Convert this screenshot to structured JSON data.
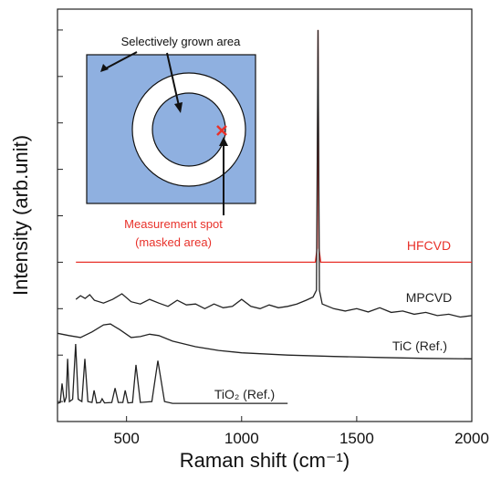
{
  "chart_data": {
    "type": "line",
    "x_label": "Raman shift (cm⁻¹)",
    "y_label": "Intensity (arb.unit)",
    "xlim": [
      200,
      2000
    ],
    "xticks": [
      500,
      1000,
      1500,
      2000
    ],
    "ylim": [
      0.57,
      9.45
    ],
    "yticks": [
      1,
      2,
      3,
      4,
      5,
      6,
      7,
      8,
      9
    ],
    "annotations": [
      "Selectively grown area",
      "Measurement spot",
      "(masked area)"
    ],
    "series": [
      {
        "name": "HFCVD",
        "color": "#e8312a",
        "x": [
          280,
          1320,
          1328,
          1332,
          1336,
          1344,
          2000
        ],
        "values": [
          4.0,
          4.0,
          4.3,
          9.0,
          4.3,
          4.0,
          4.0
        ]
      },
      {
        "name": "MPCVD",
        "color": "#222222",
        "x": [
          280,
          300,
          320,
          340,
          360,
          400,
          440,
          480,
          520,
          560,
          600,
          640,
          680,
          720,
          760,
          800,
          840,
          880,
          920,
          960,
          1000,
          1040,
          1080,
          1120,
          1160,
          1200,
          1240,
          1280,
          1310,
          1325,
          1332,
          1338,
          1350,
          1400,
          1450,
          1500,
          1550,
          1600,
          1650,
          1700,
          1750,
          1800,
          1850,
          1900,
          1950,
          2000
        ],
        "values": [
          3.2,
          3.28,
          3.22,
          3.3,
          3.18,
          3.12,
          3.2,
          3.32,
          3.15,
          3.1,
          3.2,
          3.12,
          3.05,
          3.18,
          3.08,
          3.1,
          3.0,
          3.1,
          3.02,
          3.05,
          3.2,
          3.05,
          3.0,
          3.08,
          3.02,
          3.05,
          3.1,
          3.18,
          3.25,
          3.4,
          9.0,
          3.4,
          3.1,
          3.0,
          2.95,
          3.0,
          2.93,
          3.02,
          2.92,
          2.95,
          2.88,
          2.92,
          2.85,
          2.88,
          2.82,
          2.85
        ]
      },
      {
        "name": "TiC (Ref.)",
        "color": "#222222",
        "x": [
          200,
          250,
          300,
          350,
          400,
          430,
          470,
          520,
          560,
          600,
          640,
          700,
          800,
          900,
          1000,
          1200,
          1400,
          1600,
          1800,
          2000
        ],
        "values": [
          2.47,
          2.42,
          2.38,
          2.5,
          2.65,
          2.67,
          2.55,
          2.38,
          2.4,
          2.45,
          2.42,
          2.3,
          2.18,
          2.1,
          2.05,
          2.0,
          1.97,
          1.95,
          1.93,
          1.92
        ]
      },
      {
        "name": "TiO₂ (Ref.)",
        "color": "#222222",
        "x": [
          200,
          212,
          220,
          230,
          238,
          244,
          252,
          266,
          279,
          290,
          306,
          319,
          332,
          350,
          359,
          370,
          386,
          394,
          404,
          436,
          450,
          464,
          484,
          494,
          506,
          526,
          541,
          560,
          610,
          636,
          665,
          700,
          1200
        ],
        "values": [
          0.96,
          0.98,
          1.39,
          0.98,
          1.1,
          1.92,
          1.0,
          1.05,
          2.24,
          1.05,
          1.0,
          1.92,
          1.0,
          0.98,
          1.24,
          0.97,
          0.98,
          1.06,
          0.97,
          0.98,
          1.29,
          0.98,
          0.98,
          1.24,
          0.97,
          0.98,
          1.79,
          0.98,
          1.0,
          1.88,
          1.0,
          0.96,
          0.96
        ]
      }
    ]
  }
}
